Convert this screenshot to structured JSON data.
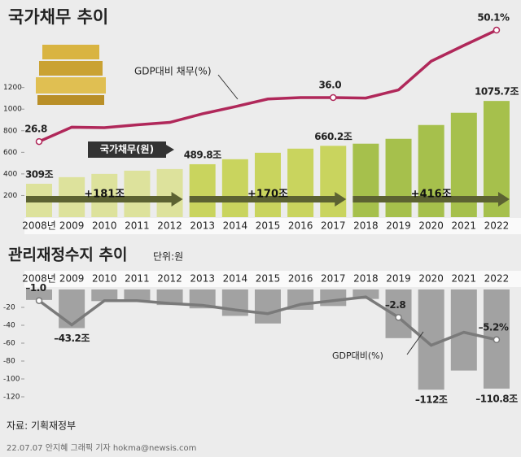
{
  "chart_data": [
    {
      "type": "bar",
      "title": "국가채무 추이",
      "categories": [
        "2008년",
        "2009",
        "2010",
        "2011",
        "2012",
        "2013",
        "2014",
        "2015",
        "2016",
        "2017",
        "2018",
        "2019",
        "2020",
        "2021",
        "2022"
      ],
      "ylim": [
        0,
        1860
      ],
      "yticks": [
        200,
        400,
        600,
        800,
        1000,
        1200
      ],
      "y2lim": [
        11,
        53
      ],
      "series": [
        {
          "name": "국가채무(원)",
          "type": "bar",
          "colors": [
            "#dde29c",
            "#dde29c",
            "#dde29c",
            "#dde29c",
            "#dde29c",
            "#c9d45e",
            "#c9d45e",
            "#c9d45e",
            "#c9d45e",
            "#c9d45e",
            "#a6c04c",
            "#a6c04c",
            "#a6c04c",
            "#a6c04c",
            "#a6c04c"
          ],
          "values": [
            309,
            370,
            400,
            430,
            445,
            489.8,
            536,
            596,
            634,
            660.2,
            680,
            725,
            853,
            966,
            1075.7
          ],
          "value_labels": [
            "309조",
            null,
            null,
            null,
            null,
            "489.8조",
            null,
            null,
            null,
            "660.2조",
            null,
            null,
            null,
            null,
            "1075.7조"
          ]
        },
        {
          "name": "GDP대비 채무(%)",
          "type": "line",
          "axis": "y2",
          "color": "#b0285a",
          "values": [
            26.8,
            29.8,
            29.7,
            30.3,
            30.8,
            32.6,
            34.1,
            35.7,
            36.0,
            36.0,
            35.9,
            37.6,
            43.6,
            46.9,
            50.1
          ],
          "value_labels": [
            "26.8",
            null,
            null,
            null,
            null,
            null,
            null,
            null,
            null,
            "36.0",
            null,
            null,
            null,
            null,
            "50.1%"
          ]
        }
      ],
      "annotations": [
        "+181조",
        "+170조",
        "+416조"
      ]
    },
    {
      "type": "bar",
      "title": "관리재정수지 추이",
      "subtitle": "단위:원",
      "categories": [
        "2008년",
        "2009",
        "2010",
        "2011",
        "2012",
        "2013",
        "2014",
        "2015",
        "2016",
        "2017",
        "2018",
        "2019",
        "2020",
        "2021",
        "2022"
      ],
      "ylim": [
        -130,
        0
      ],
      "yticks": [
        -20,
        -40,
        -60,
        -80,
        -100,
        -120
      ],
      "y2lim": [
        -12.3,
        0.2
      ],
      "series": [
        {
          "type": "bar",
          "color": "#a2a2a2",
          "values": [
            -11.7,
            -43.2,
            -13.0,
            -13.5,
            -17.4,
            -21.1,
            -29.5,
            -38.0,
            -22.7,
            -18.5,
            -10.6,
            -54.4,
            -112,
            -90.6,
            -110.8
          ],
          "value_labels": [
            null,
            "–43.2조",
            null,
            null,
            null,
            null,
            null,
            null,
            null,
            null,
            null,
            null,
            "–112조",
            null,
            "–110.8조"
          ]
        },
        {
          "name": "GDP대비(%)",
          "type": "line",
          "axis": "y2",
          "color": "#7a7a7a",
          "values": [
            -1.0,
            -3.6,
            -1.0,
            -1.0,
            -1.3,
            -1.5,
            -2.0,
            -2.4,
            -1.4,
            -1.0,
            -0.6,
            -2.8,
            -5.8,
            -4.4,
            -5.2
          ],
          "value_labels": [
            "–1.0",
            null,
            null,
            null,
            null,
            null,
            null,
            null,
            null,
            null,
            null,
            "–2.8",
            null,
            null,
            "–5.2%"
          ]
        }
      ]
    }
  ],
  "footer": {
    "source": "자료: 기획재정부",
    "credit": "22.07.07 안지혜 그래픽 기자 hokma@newsis.com"
  }
}
